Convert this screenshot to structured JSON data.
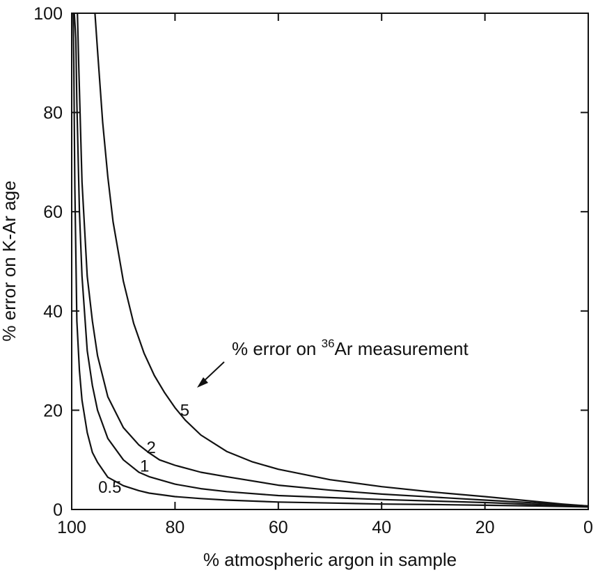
{
  "chart_data": {
    "type": "line",
    "title": "",
    "xlabel": "% atmospheric argon in sample",
    "ylabel": "% error on K-Ar age",
    "x_reversed": true,
    "xlim": [
      100,
      0
    ],
    "ylim": [
      0,
      100
    ],
    "x_ticks": [
      100,
      80,
      60,
      40,
      20,
      0
    ],
    "y_ticks": [
      0,
      20,
      40,
      60,
      80,
      100
    ],
    "grid": false,
    "line_color": "#111111",
    "annotation": {
      "prefix": "% error on ",
      "superscript": "36",
      "suffix": "Ar measurement"
    },
    "series": [
      {
        "name": "0.5",
        "x": [
          99.7,
          99.6,
          99.5,
          99.4,
          99,
          98.5,
          98,
          97,
          96,
          95,
          93,
          90,
          87,
          85,
          80,
          75,
          70,
          60,
          50,
          40,
          30,
          20,
          10,
          5,
          0
        ],
        "y": [
          100,
          90,
          78,
          65,
          38,
          28,
          22,
          15.5,
          11.5,
          9.5,
          6.5,
          4.8,
          3.8,
          3.3,
          2.6,
          2.2,
          1.9,
          1.5,
          1.3,
          1.1,
          1.0,
          0.85,
          0.7,
          0.6,
          0.5
        ]
      },
      {
        "name": "1",
        "x": [
          99.5,
          99.2,
          99,
          98.5,
          98,
          97,
          96,
          95,
          93,
          90,
          87,
          85,
          80,
          75,
          70,
          60,
          50,
          40,
          30,
          20,
          10,
          5,
          0
        ],
        "y": [
          100,
          95,
          82,
          60,
          47,
          32,
          25,
          20,
          14.3,
          10,
          7.5,
          6.6,
          5.1,
          4.2,
          3.6,
          2.8,
          2.4,
          2.0,
          1.7,
          1.4,
          1.0,
          0.8,
          0.6
        ]
      },
      {
        "name": "2",
        "x": [
          98.9,
          98.6,
          98,
          97,
          96,
          95,
          93,
          90,
          87,
          85,
          83,
          80,
          75,
          70,
          60,
          50,
          40,
          30,
          20,
          10,
          5,
          0
        ],
        "y": [
          100,
          88,
          66,
          47,
          38,
          31,
          22.7,
          16.5,
          13,
          11.4,
          10,
          8.9,
          7.5,
          6.6,
          4.9,
          3.9,
          3.1,
          2.5,
          1.9,
          1.3,
          1.0,
          0.7
        ]
      },
      {
        "name": "5",
        "x": [
          95.5,
          95,
          94,
          93,
          92,
          90,
          88,
          86,
          84,
          82,
          80,
          78,
          75,
          70,
          65,
          60,
          50,
          40,
          30,
          20,
          10,
          5,
          0
        ],
        "y": [
          100,
          92.5,
          78,
          67,
          58,
          46,
          37.5,
          31.5,
          27,
          23.5,
          20.5,
          18,
          15,
          11.7,
          9.6,
          8.1,
          6.0,
          4.6,
          3.5,
          2.6,
          1.6,
          1.1,
          0.7
        ]
      }
    ]
  }
}
